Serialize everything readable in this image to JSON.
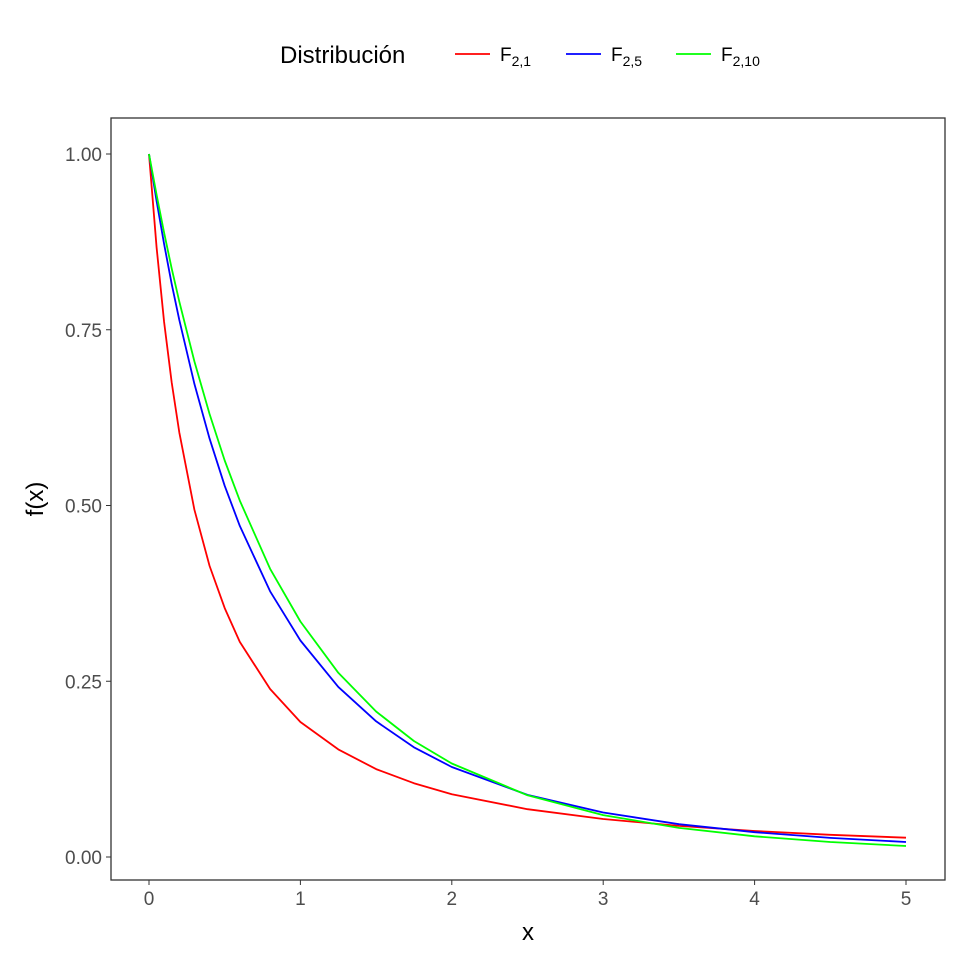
{
  "chart_data": {
    "type": "line",
    "title": "",
    "xlabel": "x",
    "ylabel": "f(x)",
    "xlim": [
      0,
      5
    ],
    "ylim": [
      0,
      1
    ],
    "x_ticks": [
      "0",
      "1",
      "2",
      "3",
      "4",
      "5"
    ],
    "y_ticks": [
      "0.00",
      "0.25",
      "0.50",
      "0.75",
      "1.00"
    ],
    "grid": false,
    "legend": {
      "title": "Distribución",
      "placement": "top"
    },
    "x": [
      0,
      0.05,
      0.1,
      0.15,
      0.2,
      0.3,
      0.4,
      0.5,
      0.6,
      0.8,
      1,
      1.25,
      1.5,
      1.75,
      2,
      2.5,
      3,
      3.5,
      4,
      4.5,
      5
    ],
    "series": [
      {
        "name": "F2,1",
        "label_base": "F",
        "label_sub": "2,1",
        "color": "#ff0000",
        "values": [
          1,
          0.867,
          0.761,
          0.675,
          0.604,
          0.494,
          0.414,
          0.354,
          0.306,
          0.239,
          0.192,
          0.153,
          0.125,
          0.105,
          0.0894,
          0.068,
          0.054,
          0.0442,
          0.037,
          0.0316,
          0.0274
        ]
      },
      {
        "name": "F2,5",
        "label_base": "F",
        "label_sub": "2,5",
        "color": "#0000ff",
        "values": [
          1,
          0.933,
          0.872,
          0.815,
          0.764,
          0.673,
          0.595,
          0.528,
          0.471,
          0.378,
          0.308,
          0.242,
          0.193,
          0.156,
          0.128,
          0.0884,
          0.0633,
          0.0467,
          0.0353,
          0.0272,
          0.0214
        ]
      },
      {
        "name": "F2,10",
        "label_base": "F",
        "label_sub": "2,10",
        "color": "#00ff00",
        "values": [
          1,
          0.942,
          0.888,
          0.837,
          0.79,
          0.705,
          0.63,
          0.564,
          0.507,
          0.41,
          0.335,
          0.262,
          0.207,
          0.165,
          0.133,
          0.0878,
          0.0596,
          0.0414,
          0.0294,
          0.0213,
          0.0156
        ]
      }
    ]
  }
}
